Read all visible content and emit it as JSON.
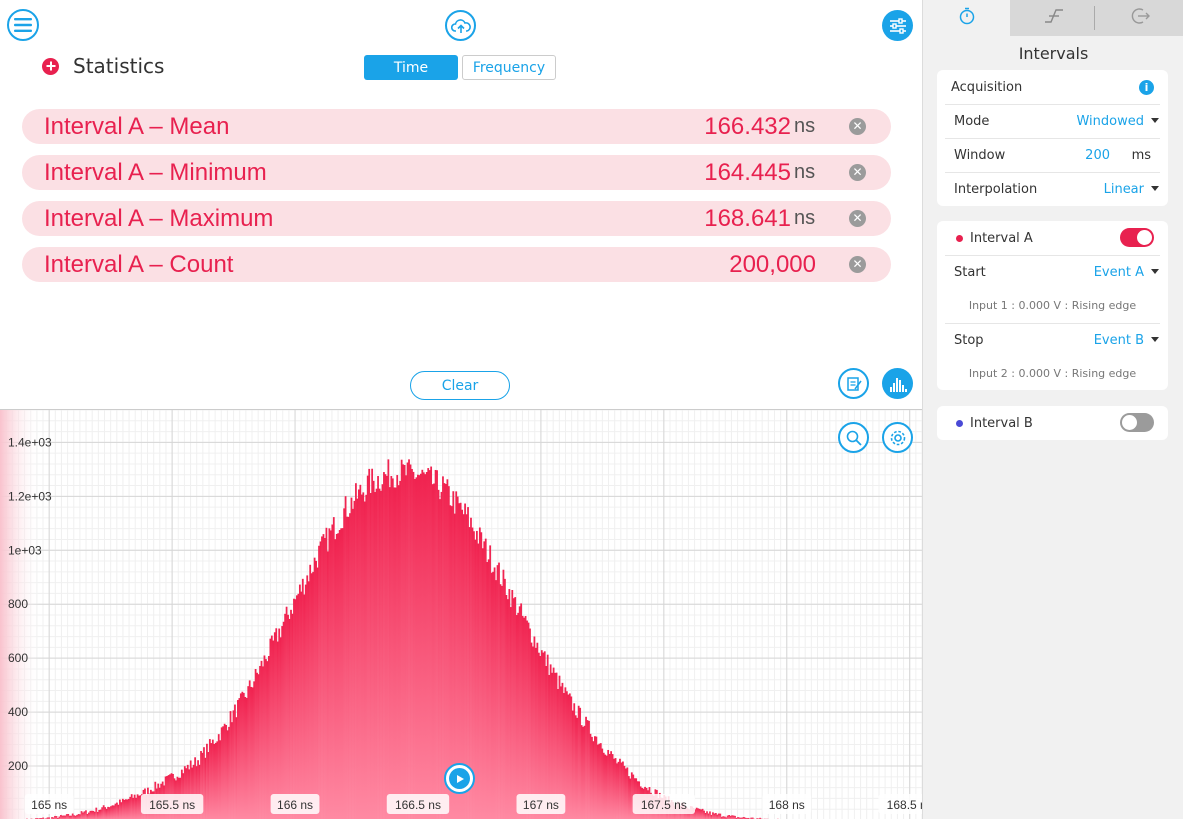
{
  "header": {
    "menu_icon": "hamburger-menu-icon",
    "cloud_icon": "cloud-upload-icon",
    "settings_icon": "sliders-icon"
  },
  "statistics": {
    "title": "Statistics",
    "tabs": [
      {
        "label": "Time",
        "active": true
      },
      {
        "label": "Frequency",
        "active": false
      }
    ],
    "rows": [
      {
        "label": "Interval A – Mean",
        "value": "166.432",
        "unit": "ns"
      },
      {
        "label": "Interval A – Minimum",
        "value": "164.445",
        "unit": "ns"
      },
      {
        "label": "Interval A – Maximum",
        "value": "168.641",
        "unit": "ns"
      },
      {
        "label": "Interval A – Count",
        "value": "200,000",
        "unit": ""
      }
    ],
    "clear_label": "Clear"
  },
  "chart_data": {
    "type": "bar",
    "title": "",
    "xlabel": "",
    "ylabel": "",
    "x_ticks": [
      "165 ns",
      "165.5 ns",
      "166 ns",
      "166.5 ns",
      "167 ns",
      "167.5 ns",
      "168 ns",
      "168.5 ns"
    ],
    "x_tick_values": [
      165,
      165.5,
      166,
      166.5,
      167,
      167.5,
      168,
      168.5
    ],
    "y_ticks": [
      "200",
      "400",
      "600",
      "800",
      "1e+03",
      "1.2e+03",
      "1.4e+03"
    ],
    "y_tick_values": [
      200,
      400,
      600,
      800,
      1000,
      1200,
      1400
    ],
    "xlim": [
      164.8,
      168.55
    ],
    "ylim": [
      0,
      1520
    ],
    "series": [
      {
        "x": [
          164.9,
          165.0,
          165.1,
          165.2,
          165.3,
          165.4,
          165.5,
          165.6,
          165.7,
          165.8,
          165.9,
          166.0,
          166.1,
          166.2,
          166.3,
          166.4,
          166.5,
          166.6,
          166.7,
          166.8,
          166.9,
          167.0,
          167.1,
          167.2,
          167.3,
          167.4,
          167.5,
          167.6,
          167.7,
          167.8,
          167.9,
          168.0
        ],
        "values": [
          2,
          8,
          20,
          40,
          70,
          110,
          160,
          220,
          330,
          470,
          640,
          820,
          1000,
          1150,
          1250,
          1290,
          1280,
          1230,
          1120,
          960,
          790,
          620,
          460,
          330,
          220,
          140,
          80,
          45,
          22,
          10,
          4,
          1
        ]
      }
    ],
    "grid": true,
    "color": "#f0224f"
  },
  "sidebar": {
    "title": "Intervals",
    "tabs": [
      {
        "icon": "stopwatch-icon",
        "active": true
      },
      {
        "icon": "edge-trigger-icon",
        "active": false
      },
      {
        "icon": "export-icon",
        "active": false
      }
    ],
    "acquisition": {
      "title": "Acquisition",
      "info_icon": "info-icon",
      "mode_label": "Mode",
      "mode_value": "Windowed",
      "window_label": "Window",
      "window_value": "200",
      "window_unit": "ms",
      "interp_label": "Interpolation",
      "interp_value": "Linear"
    },
    "interval_a": {
      "title": "Interval A",
      "color": "#e8214f",
      "enabled": true,
      "start_label": "Start",
      "start_value": "Event A",
      "start_note": "Input 1 : 0.000 V : Rising edge",
      "stop_label": "Stop",
      "stop_value": "Event B",
      "stop_note": "Input 2 : 0.000 V : Rising edge"
    },
    "interval_b": {
      "title": "Interval B",
      "color": "#4a4ad6",
      "enabled": false
    }
  }
}
